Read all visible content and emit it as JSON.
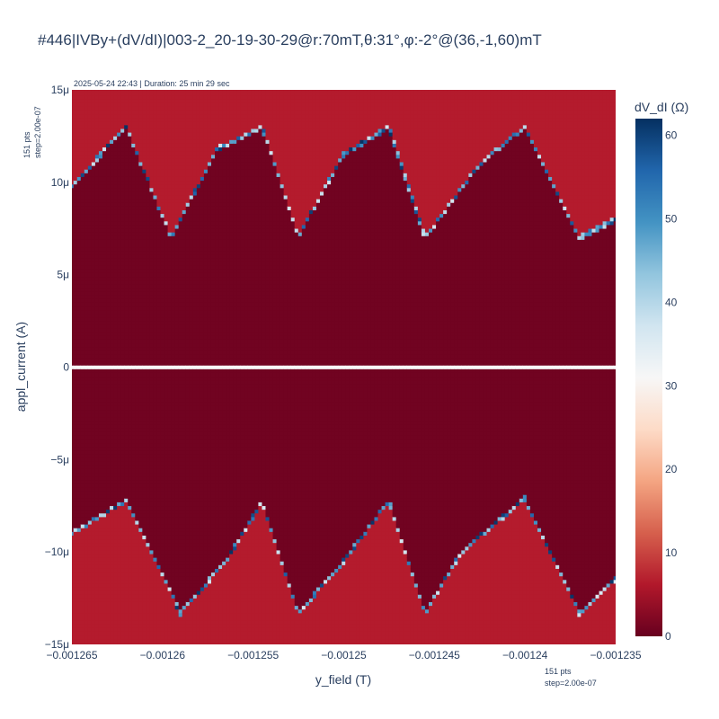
{
  "chart_data": {
    "type": "heatmap",
    "title": "#446|IVBy+(dV/dI)|003-2_20-19-30-29@r:70mT,θ:31°,φ:-2°@(36,-1,60)mT",
    "subtitle": "2025-05-24 22:43 | Duration: 25 min 29 sec",
    "xlabel": "y_field (T)",
    "ylabel": "appl_current (A)",
    "xlim": [
      -0.001265,
      -0.001235
    ],
    "ylim": [
      -1.5e-05,
      1.5e-05
    ],
    "x_ticks": [
      -0.001265,
      -0.00126,
      -0.001255,
      -0.00125,
      -0.001245,
      -0.00124,
      -0.001235
    ],
    "x_tick_labels": [
      "−0.001265",
      "−0.00126",
      "−0.001255",
      "−0.00125",
      "−0.001245",
      "−0.00124",
      "−0.001235"
    ],
    "y_ticks": [
      -1.5e-05,
      -1e-05,
      -5e-06,
      0,
      5e-06,
      1e-05,
      1.5e-05
    ],
    "y_tick_labels": [
      "−15μ",
      "−10μ",
      "−5μ",
      "0",
      "5μ",
      "10μ",
      "15μ"
    ],
    "x_note": [
      "151 pts",
      "step=2.00e-07"
    ],
    "y_note": [
      "151 pts",
      "step=2.00e-07"
    ],
    "colorbar": {
      "title": "dV_dI (Ω)",
      "range": [
        0,
        62
      ],
      "ticks": [
        0,
        10,
        20,
        30,
        40,
        50,
        60
      ],
      "colorscale": [
        "#67001f",
        "#b2182b",
        "#d6604d",
        "#f4a582",
        "#fddbc7",
        "#f7f7f7",
        "#d1e5f0",
        "#92c5de",
        "#4393c3",
        "#2166ac",
        "#053061"
      ]
    },
    "grid": false,
    "series": [
      {
        "name": "positive switching current",
        "x": [
          -0.001265,
          -0.001262,
          -0.0012595,
          -0.001257,
          -0.0012545,
          -0.0012525,
          -0.00125,
          -0.0012475,
          -0.0012455,
          -0.0012425,
          -0.00124,
          -0.001237,
          -0.001235
        ],
        "y": [
          9.8e-06,
          1.3e-05,
          7e-06,
          1.18e-05,
          1.3e-05,
          7.1e-06,
          1.15e-05,
          1.3e-05,
          7e-06,
          1.1e-05,
          1.3e-05,
          7e-06,
          8e-06
        ]
      },
      {
        "name": "negative switching current",
        "x": [
          -0.001265,
          -0.001262,
          -0.001259,
          -0.0012565,
          -0.0012545,
          -0.0012525,
          -0.00125,
          -0.0012475,
          -0.0012455,
          -0.0012435,
          -0.00124,
          -0.001237,
          -0.001235
        ],
        "y": [
          -9e-06,
          -7.2e-06,
          -1.33e-05,
          -1.05e-05,
          -7.3e-06,
          -1.33e-05,
          -1.05e-05,
          -7.2e-06,
          -1.33e-05,
          -1e-05,
          -7.1e-06,
          -1.33e-05,
          -1.15e-05
        ]
      }
    ]
  }
}
